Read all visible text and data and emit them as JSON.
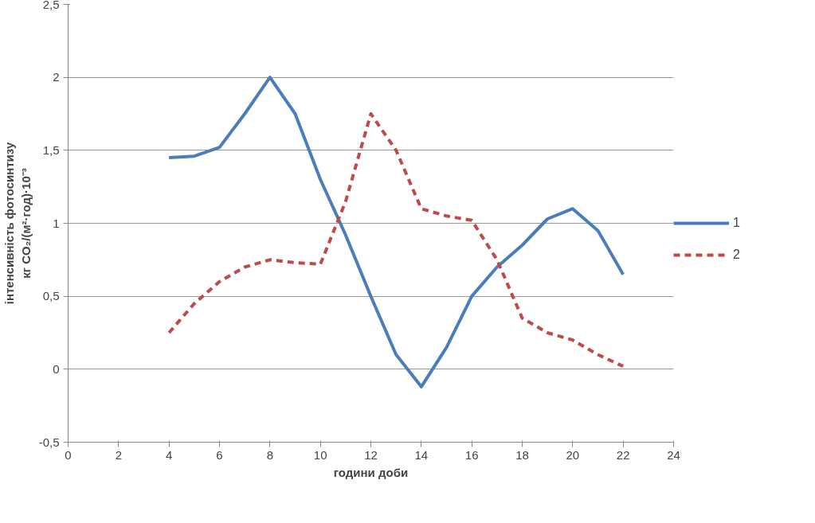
{
  "chart_data": {
    "type": "line",
    "xlabel": "години доби",
    "ylabel": "інтенсивність фотосинтизу\nкг CO₂/(м²·год)·10⁻³",
    "x": [
      4,
      5,
      6,
      7,
      8,
      9,
      10,
      11,
      12,
      13,
      14,
      15,
      16,
      17,
      18,
      19,
      20,
      21,
      22
    ],
    "series": [
      {
        "name": "1",
        "color": "#4a7ebb",
        "line_style": "solid",
        "values": [
          1.45,
          1.46,
          1.52,
          1.75,
          2.0,
          1.75,
          1.3,
          0.92,
          0.5,
          0.1,
          -0.12,
          0.15,
          0.5,
          0.7,
          0.85,
          1.03,
          1.1,
          0.95,
          0.65
        ]
      },
      {
        "name": "2",
        "color": "#be4b48",
        "line_style": "dashed",
        "values": [
          0.25,
          0.45,
          0.6,
          0.7,
          0.75,
          0.73,
          0.72,
          1.15,
          1.75,
          1.5,
          1.1,
          1.05,
          1.02,
          0.75,
          0.35,
          0.25,
          0.2,
          0.1,
          0.02
        ]
      }
    ],
    "xlim": [
      0,
      24
    ],
    "xticks": [
      0,
      2,
      4,
      6,
      8,
      10,
      12,
      14,
      16,
      18,
      20,
      22,
      24
    ],
    "ylim": [
      -0.5,
      2.5
    ],
    "yticks": [
      {
        "value": -0.5,
        "label": "-0,5"
      },
      0,
      {
        "value": 0.5,
        "label": "0,5"
      },
      1,
      {
        "value": 1.5,
        "label": "1,5"
      },
      2,
      {
        "value": 2.5,
        "label": "2,5"
      }
    ],
    "grid": "y",
    "legend": "right",
    "marker": "none"
  }
}
